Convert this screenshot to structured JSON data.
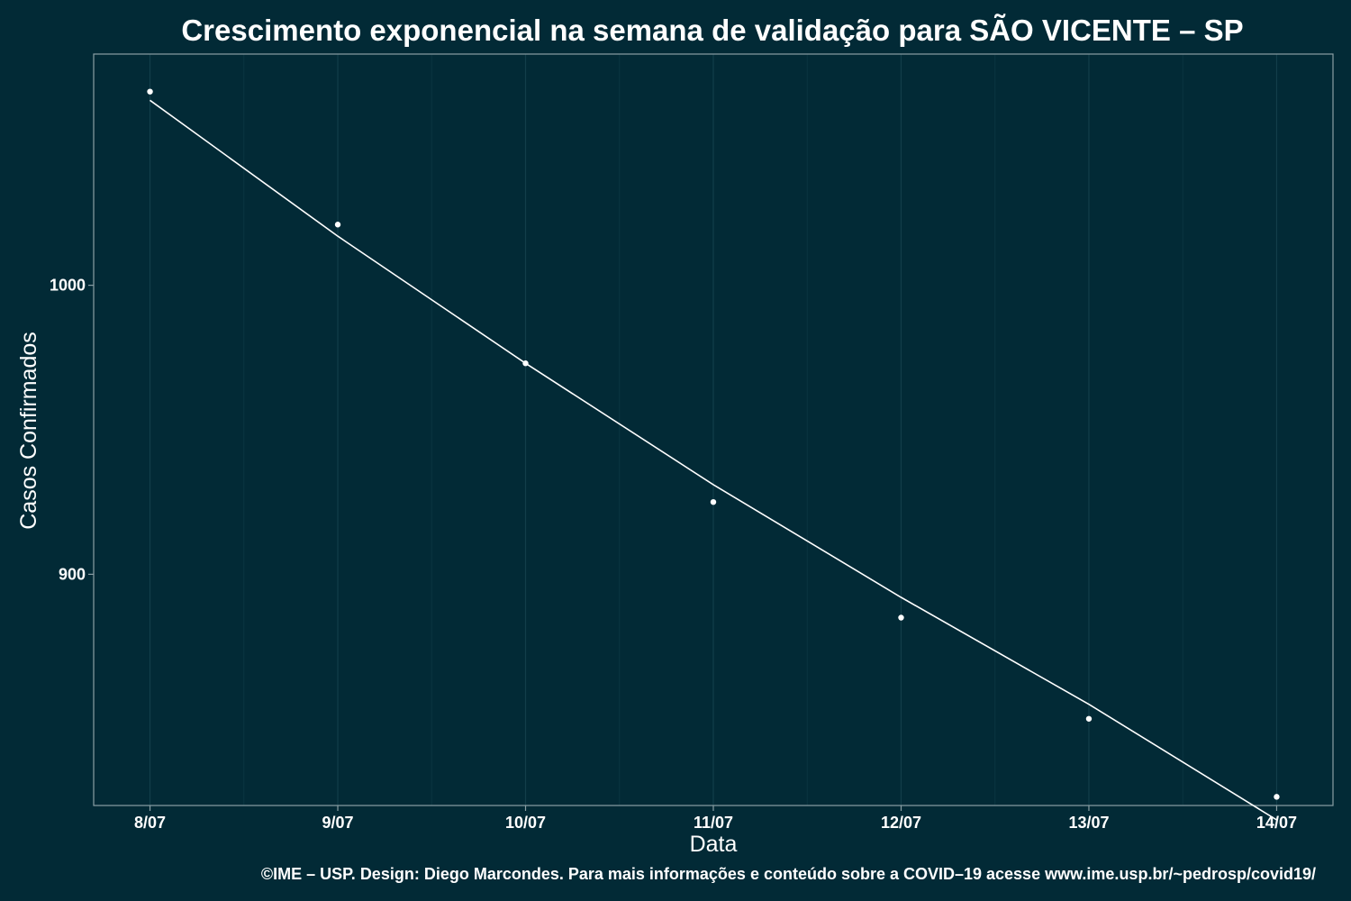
{
  "colors": {
    "background": "#022a36",
    "panel_border": "#8a9ea4",
    "grid_major": "#123e4a",
    "grid_minor": "#0b3541",
    "points": "#ffffff",
    "line": "#ffffff",
    "text": "#ffffff"
  },
  "chart_data": {
    "type": "scatter",
    "title": "Crescimento exponencial na semana de validação para SÃO VICENTE – SP",
    "xlabel": "Data",
    "ylabel": "Casos Confirmados",
    "caption": "©IME – USP. Design: Diego Marcondes. Para mais informações e conteúdo sobre a COVID–19 acesse www.ime.usp.br/~pedrosp/covid19/",
    "x_ticks": [
      "8/07",
      "9/07",
      "10/07",
      "11/07",
      "12/07",
      "13/07",
      "14/07"
    ],
    "y_ticks": [
      900,
      1000
    ],
    "xlim": [
      -0.3,
      6.3
    ],
    "ylim": [
      820,
      1080
    ],
    "grid": true,
    "legend": "none",
    "points": {
      "x": [
        "8/07",
        "9/07",
        "10/07",
        "11/07",
        "12/07",
        "13/07",
        "14/07"
      ],
      "y": [
        1067,
        1021,
        973,
        925,
        885,
        850,
        823
      ]
    },
    "fit_line": {
      "x": [
        "8/07",
        "9/07",
        "10/07",
        "11/07",
        "12/07",
        "13/07",
        "14/07"
      ],
      "y": [
        1064,
        1017,
        973,
        931,
        892,
        855,
        815
      ]
    }
  }
}
